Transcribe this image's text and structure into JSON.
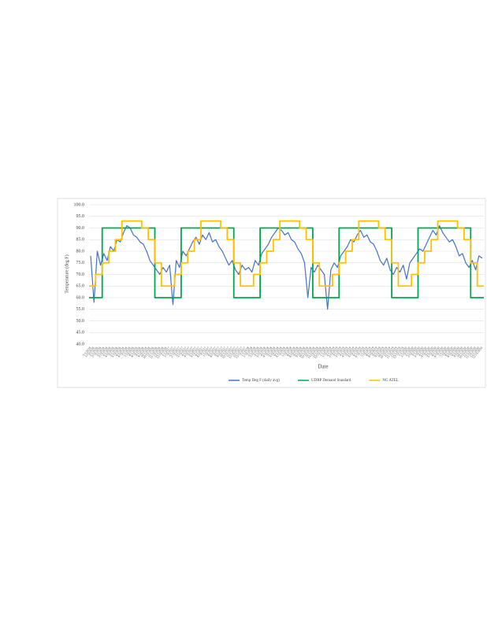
{
  "chart_data": {
    "type": "line",
    "y_label": "Temperature (deg F)",
    "x_label": "Date",
    "categories": [
      "1/1/2016",
      "1/15/2016",
      "2/1/2016",
      "2/15/2016",
      "3/1/2016",
      "3/15/2016",
      "4/1/2016",
      "4/15/2016",
      "5/1/2016",
      "5/15/2016",
      "6/1/2016",
      "6/15/2016",
      "7/1/2016",
      "7/15/2016",
      "8/1/2016",
      "8/15/2016",
      "9/1/2016",
      "9/15/2016",
      "10/1/2016",
      "10/15/2016",
      "11/1/2016",
      "11/15/2016",
      "12/1/2016",
      "12/15/2016",
      "1/1/2017",
      "1/15/2017",
      "2/1/2017",
      "2/15/2017",
      "3/1/2017",
      "3/15/2017",
      "4/1/2017",
      "4/15/2017",
      "5/1/2017",
      "5/15/2017",
      "6/1/2017",
      "6/15/2017",
      "7/1/2017",
      "7/15/2017",
      "8/1/2017",
      "8/15/2017",
      "9/1/2017",
      "9/15/2017",
      "10/1/2017",
      "10/15/2017",
      "11/1/2017",
      "11/15/2017",
      "12/1/2017",
      "12/15/2017",
      "1/1/2018",
      "1/15/2018",
      "2/1/2018",
      "2/15/2018",
      "3/1/2018",
      "3/15/2018",
      "4/1/2018",
      "4/15/2018",
      "5/1/2018",
      "5/15/2018",
      "6/1/2018",
      "6/15/2018",
      "7/1/2018",
      "7/15/2018",
      "8/1/2018",
      "8/15/2018",
      "9/1/2018",
      "9/15/2018",
      "10/1/2018",
      "10/15/2018",
      "11/1/2018",
      "11/15/2018",
      "12/1/2018",
      "12/15/2018",
      "1/1/2019",
      "1/15/2019",
      "2/1/2019",
      "2/15/2019",
      "3/1/2019",
      "3/15/2019",
      "4/1/2019",
      "4/15/2019",
      "5/1/2019",
      "5/15/2019",
      "6/1/2019",
      "6/15/2019",
      "7/1/2019",
      "7/15/2019",
      "8/1/2019",
      "8/15/2019",
      "9/1/2019",
      "9/15/2019",
      "10/1/2019",
      "10/15/2019",
      "11/1/2019",
      "11/15/2019",
      "12/1/2019",
      "12/15/2019",
      "1/1/2020",
      "1/15/2020",
      "2/1/2020",
      "2/15/2020",
      "3/1/2020",
      "3/15/2020",
      "4/1/2020",
      "4/15/2020",
      "5/1/2020",
      "5/15/2020",
      "6/1/2020",
      "6/15/2020",
      "7/1/2020",
      "7/15/2020",
      "8/1/2020",
      "8/15/2020",
      "9/1/2020",
      "9/15/2020",
      "10/1/2020",
      "10/15/2020",
      "11/1/2020",
      "11/15/2020",
      "12/1/2020",
      "12/15/2020"
    ],
    "series": [
      {
        "name": "Temp Deg F (daily avg)",
        "color": "#4472c4",
        "step": false,
        "values": [
          78,
          58,
          80,
          74,
          79,
          76,
          82,
          80,
          85,
          84,
          88,
          91,
          90,
          87,
          86,
          84,
          83,
          80,
          76,
          74,
          72,
          70,
          73,
          71,
          74,
          57,
          76,
          73,
          80,
          78,
          81,
          84,
          86,
          83,
          87,
          85,
          88,
          84,
          85,
          82,
          80,
          77,
          74,
          76,
          72,
          70,
          74,
          72,
          73,
          71,
          76,
          74,
          79,
          81,
          83,
          86,
          88,
          90,
          89,
          87,
          88,
          85,
          84,
          81,
          79,
          75,
          60,
          73,
          71,
          74,
          72,
          70,
          55,
          72,
          75,
          73,
          78,
          80,
          82,
          85,
          84,
          87,
          89,
          86,
          87,
          84,
          83,
          80,
          76,
          74,
          77,
          72,
          70,
          73,
          71,
          74,
          68,
          75,
          77,
          79,
          81,
          80,
          83,
          86,
          89,
          87,
          91,
          88,
          86,
          84,
          85,
          82,
          78,
          79,
          75,
          73,
          76,
          72,
          78,
          77
        ]
      },
      {
        "name": "UDRP Demand Standard",
        "color": "#00a650",
        "step": true,
        "values": [
          60,
          60,
          60,
          60,
          90,
          90,
          90,
          90,
          90,
          90,
          90,
          90,
          90,
          90,
          90,
          90,
          90,
          90,
          90,
          90,
          60,
          60,
          60,
          60,
          60,
          60,
          60,
          60,
          90,
          90,
          90,
          90,
          90,
          90,
          90,
          90,
          90,
          90,
          90,
          90,
          90,
          90,
          90,
          90,
          60,
          60,
          60,
          60,
          60,
          60,
          60,
          60,
          90,
          90,
          90,
          90,
          90,
          90,
          90,
          90,
          90,
          90,
          90,
          90,
          90,
          90,
          90,
          90,
          60,
          60,
          60,
          60,
          60,
          60,
          60,
          60,
          90,
          90,
          90,
          90,
          90,
          90,
          90,
          90,
          90,
          90,
          90,
          90,
          90,
          90,
          90,
          90,
          60,
          60,
          60,
          60,
          60,
          60,
          60,
          60,
          90,
          90,
          90,
          90,
          90,
          90,
          90,
          90,
          90,
          90,
          90,
          90,
          90,
          90,
          90,
          90,
          60,
          60,
          60,
          60
        ]
      },
      {
        "name": "NG ATEL",
        "color": "#ffc000",
        "step": true,
        "values": [
          65,
          65,
          70,
          70,
          75,
          75,
          80,
          80,
          85,
          85,
          93,
          93,
          93,
          93,
          93,
          93,
          90,
          90,
          85,
          85,
          75,
          75,
          65,
          65,
          65,
          65,
          70,
          70,
          75,
          75,
          80,
          80,
          85,
          85,
          93,
          93,
          93,
          93,
          93,
          93,
          90,
          90,
          85,
          85,
          75,
          75,
          65,
          65,
          65,
          65,
          70,
          70,
          75,
          75,
          80,
          80,
          85,
          85,
          93,
          93,
          93,
          93,
          93,
          93,
          90,
          90,
          85,
          85,
          75,
          75,
          65,
          65,
          65,
          65,
          70,
          70,
          75,
          75,
          80,
          80,
          85,
          85,
          93,
          93,
          93,
          93,
          93,
          93,
          90,
          90,
          85,
          85,
          75,
          75,
          65,
          65,
          65,
          65,
          70,
          70,
          75,
          75,
          80,
          80,
          85,
          85,
          93,
          93,
          93,
          93,
          93,
          93,
          90,
          90,
          85,
          85,
          75,
          75,
          65,
          65
        ]
      }
    ],
    "ylim": [
      40,
      100
    ],
    "yticks": [
      {
        "value": 40,
        "label": "40.0"
      },
      {
        "value": 45,
        "label": "45.0"
      },
      {
        "value": 50,
        "label": "50.0"
      },
      {
        "value": 55,
        "label": "55.0"
      },
      {
        "value": 60,
        "label": "60.0"
      },
      {
        "value": 65,
        "label": "65.0"
      },
      {
        "value": 70,
        "label": "70.0"
      },
      {
        "value": 75,
        "label": "75.0"
      },
      {
        "value": 80,
        "label": "80.0"
      },
      {
        "value": 85,
        "label": "85.0"
      },
      {
        "value": 90,
        "label": "90.0"
      },
      {
        "value": 95,
        "label": "95.0"
      },
      {
        "value": 100,
        "label": "100.0"
      }
    ],
    "grid": true,
    "legend": "bottom"
  }
}
